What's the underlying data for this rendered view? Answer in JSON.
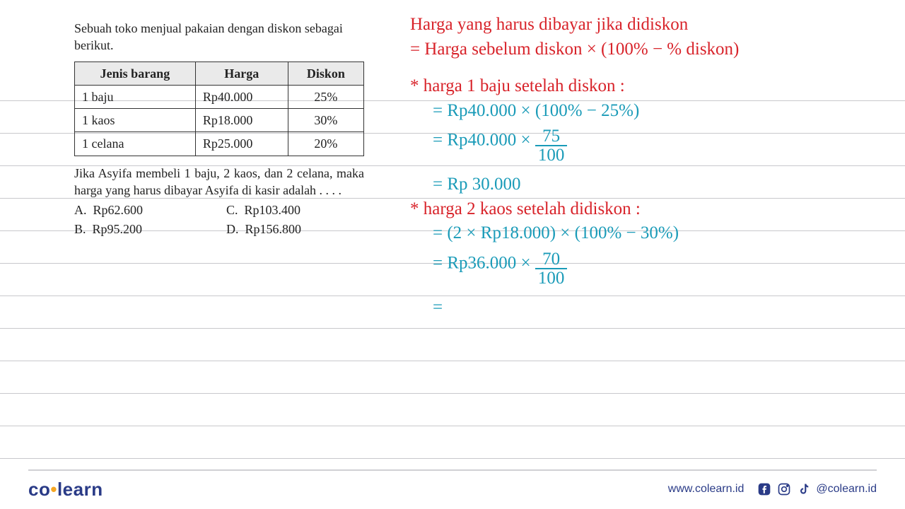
{
  "colors": {
    "handwriting_red": "#d8232a",
    "handwriting_blue": "#1a9bb8",
    "text_black": "#222222",
    "brand_blue": "#2a3b87",
    "brand_orange": "#f5a623",
    "rule_line": "#c8c8cc"
  },
  "notebook_lines_y": [
    142,
    188,
    234,
    280,
    326,
    372,
    418,
    464,
    510,
    556,
    602,
    648
  ],
  "problem": {
    "intro": "Sebuah toko menjual pakaian dengan diskon sebagai berikut.",
    "table": {
      "columns": [
        "Jenis barang",
        "Harga",
        "Diskon"
      ],
      "rows": [
        [
          "1 baju",
          "Rp40.000",
          "25%"
        ],
        [
          "1 kaos",
          "Rp18.000",
          "30%"
        ],
        [
          "1 celana",
          "Rp25.000",
          "20%"
        ]
      ]
    },
    "question": "Jika Asyifa membeli 1 baju, 2 kaos, dan 2 celana, maka harga yang harus dibayar Asyifa di kasir adalah . . . .",
    "options": {
      "A": "Rp62.600",
      "B": "Rp95.200",
      "C": "Rp103.400",
      "D": "Rp156.800"
    }
  },
  "handwriting": {
    "l1": "Harga yang harus dibayar jika didiskon",
    "l2": "= Harga sebelum diskon × (100% − % diskon)",
    "l3": "* harga 1 baju setelah diskon :",
    "l4a": "= Rp40.000 × (100% − 25%)",
    "l5a": "= Rp40.000 × ",
    "l5num": "75",
    "l5den": "100",
    "l6": "= Rp 30.000",
    "l7": "* harga 2 kaos setelah didiskon :",
    "l8": "= (2 × Rp18.000) × (100% − 30%)",
    "l9a": "= Rp36.000 × ",
    "l9num": "70",
    "l9den": "100",
    "l10": "="
  },
  "footer": {
    "logo_left": "co",
    "logo_right": "learn",
    "url": "www.colearn.id",
    "handle": "@colearn.id"
  }
}
